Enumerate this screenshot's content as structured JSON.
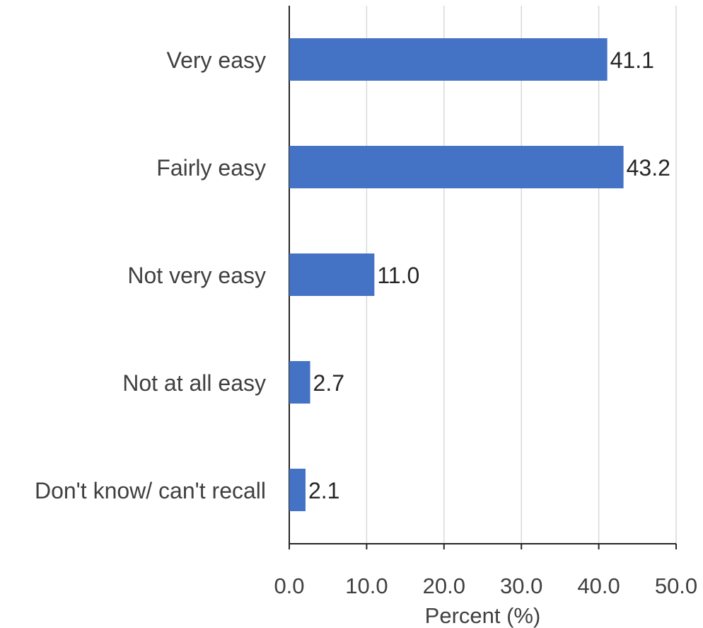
{
  "chart_data": {
    "type": "bar",
    "orientation": "horizontal",
    "categories": [
      "Very easy",
      "Fairly easy",
      "Not very easy",
      "Not at all easy",
      "Don't know/ can't recall"
    ],
    "values": [
      41.1,
      43.2,
      11.0,
      2.7,
      2.1
    ],
    "value_labels": [
      "41.1",
      "43.2",
      "11.0",
      "2.7",
      "2.1"
    ],
    "xlabel": "Percent (%)",
    "ylabel": "",
    "xlim": [
      0,
      50
    ],
    "xticks": [
      0,
      10,
      20,
      30,
      40,
      50
    ],
    "xtick_labels": [
      "0.0",
      "10.0",
      "20.0",
      "30.0",
      "40.0",
      "50.0"
    ],
    "bar_color": "#4472C4",
    "grid": "vertical",
    "legend": "none"
  }
}
